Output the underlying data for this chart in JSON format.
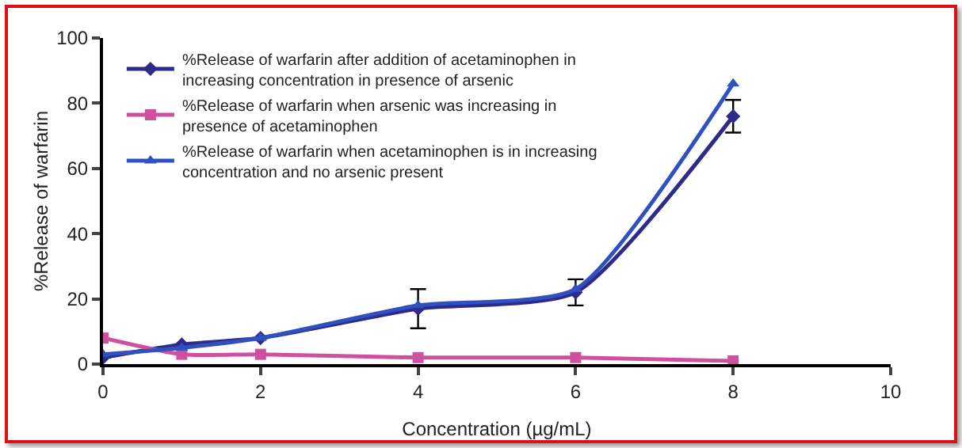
{
  "chart_data": {
    "type": "line",
    "xlabel": "Concentration (µg/mL)",
    "ylabel": "%Release of warfarin",
    "x": [
      0,
      1,
      2,
      4,
      6,
      8
    ],
    "series": [
      {
        "name": "%Release of warfarin after addition of acetaminophen in increasing concentration in presence of arsenic",
        "color": "#2e2a8a",
        "marker": "diamond",
        "values": [
          2,
          6,
          8,
          17,
          22,
          76
        ],
        "errors": [
          null,
          null,
          null,
          6,
          4,
          5
        ]
      },
      {
        "name": "%Release of warfarin when arsenic was increasing in presence of acetaminophen",
        "color": "#d050a0",
        "marker": "square",
        "values": [
          8,
          3,
          3,
          2,
          2,
          1
        ]
      },
      {
        "name": "%Release of warfarin when acetaminophen is in increasing concentration and no arsenic present",
        "color": "#3050c0",
        "marker": "triangle",
        "values": [
          3,
          5,
          8,
          18,
          23,
          86
        ]
      }
    ],
    "xlim": [
      0,
      10
    ],
    "xticks": [
      0,
      2,
      4,
      6,
      8,
      10
    ],
    "ylim": [
      0,
      100
    ],
    "yticks": [
      0,
      20,
      40,
      60,
      80,
      100
    ],
    "grid": false,
    "legend": "top left"
  }
}
